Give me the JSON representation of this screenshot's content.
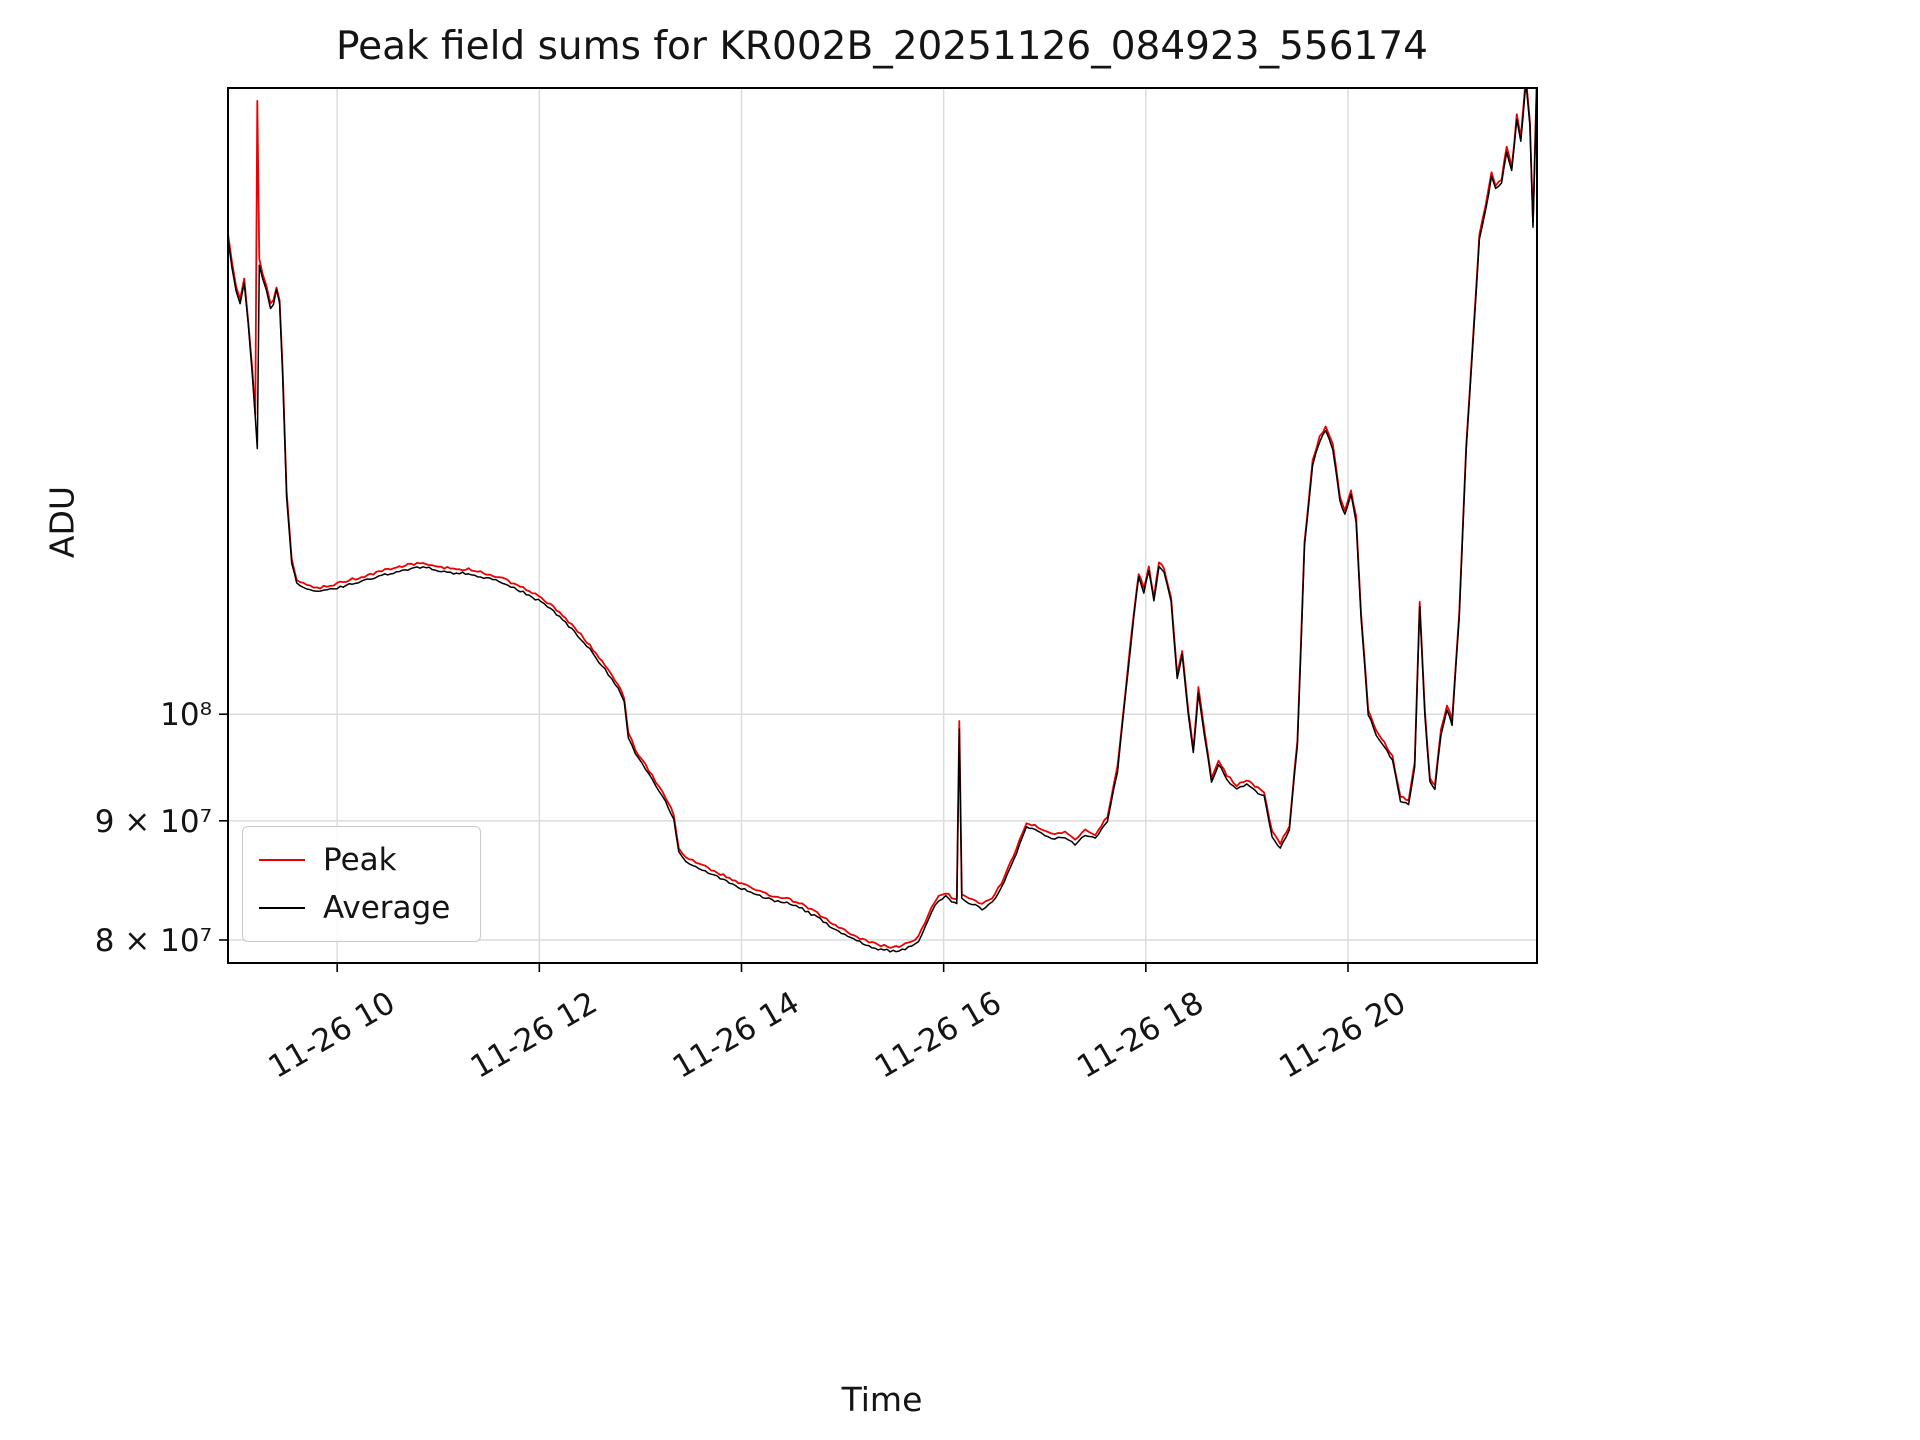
{
  "chart_data": {
    "type": "line",
    "title": "Peak field sums for KR002B_20251126_084923_556174",
    "xlabel": "Time",
    "ylabel": "ADU",
    "y_scale": "log",
    "grid": true,
    "legend_position": "lower left",
    "background": "#ffffff",
    "grid_color": "#dcdcdc",
    "ylim": [
      78200000.0,
      185700000.0
    ],
    "xlim_hours": [
      8.92,
      21.87
    ],
    "x_ticks": [
      {
        "hour": 10,
        "label": "11-26 10"
      },
      {
        "hour": 12,
        "label": "11-26 12"
      },
      {
        "hour": 14,
        "label": "11-26 14"
      },
      {
        "hour": 16,
        "label": "11-26 16"
      },
      {
        "hour": 18,
        "label": "11-26 18"
      },
      {
        "hour": 20,
        "label": "11-26 20"
      }
    ],
    "y_ticks": [
      {
        "value": 80000000.0,
        "label": "8 × 10⁷"
      },
      {
        "value": 90000000.0,
        "label": "9 × 10⁷"
      },
      {
        "value": 100000000.0,
        "label": "10⁸"
      }
    ],
    "series": [
      {
        "name": "Peak",
        "color": "#ee0000",
        "derived_from": "Average",
        "scale": 1.003,
        "noise_ratio": 0.0025,
        "noise_bias": "positive",
        "overrides": [
          [
            9.21,
            183000000.0
          ],
          [
            16.155,
            99200000.0
          ]
        ]
      },
      {
        "name": "Average",
        "color": "#000000",
        "noise_ratio": 0.0012,
        "noise_bias": "symmetric",
        "points": [
          [
            8.92,
            160000000.0
          ],
          [
            8.96,
            155500000.0
          ],
          [
            9.0,
            152000000.0
          ],
          [
            9.04,
            150000000.0
          ],
          [
            9.08,
            153000000.0
          ],
          [
            9.12,
            147000000.0
          ],
          [
            9.16,
            140000000.0
          ],
          [
            9.19,
            134000000.0
          ],
          [
            9.21,
            130000000.0
          ],
          [
            9.23,
            156000000.0
          ],
          [
            9.26,
            154000000.0
          ],
          [
            9.3,
            152000000.0
          ],
          [
            9.34,
            149500000.0
          ],
          [
            9.37,
            150000000.0
          ],
          [
            9.4,
            152000000.0
          ],
          [
            9.43,
            150000000.0
          ],
          [
            9.46,
            140000000.0
          ],
          [
            9.5,
            124000000.0
          ],
          [
            9.55,
            116000000.0
          ],
          [
            9.6,
            113800000.0
          ],
          [
            9.7,
            113200000.0
          ],
          [
            9.8,
            112800000.0
          ],
          [
            9.9,
            113000000.0
          ],
          [
            10.0,
            113300000.0
          ],
          [
            10.15,
            113800000.0
          ],
          [
            10.3,
            114200000.0
          ],
          [
            10.5,
            114900000.0
          ],
          [
            10.7,
            115400000.0
          ],
          [
            10.85,
            115700000.0
          ],
          [
            11.0,
            115200000.0
          ],
          [
            11.15,
            115000000.0
          ],
          [
            11.3,
            114900000.0
          ],
          [
            11.45,
            114500000.0
          ],
          [
            11.6,
            114000000.0
          ],
          [
            11.75,
            113300000.0
          ],
          [
            11.9,
            112500000.0
          ],
          [
            12.05,
            111500000.0
          ],
          [
            12.2,
            110100000.0
          ],
          [
            12.35,
            108500000.0
          ],
          [
            12.5,
            106600000.0
          ],
          [
            12.65,
            104500000.0
          ],
          [
            12.78,
            102500000.0
          ],
          [
            12.84,
            101200000.0
          ],
          [
            12.88,
            97800000.0
          ],
          [
            12.95,
            96200000.0
          ],
          [
            13.05,
            94700000.0
          ],
          [
            13.15,
            93200000.0
          ],
          [
            13.25,
            91700000.0
          ],
          [
            13.33,
            90200000.0
          ],
          [
            13.38,
            87200000.0
          ],
          [
            13.45,
            86500000.0
          ],
          [
            13.55,
            86000000.0
          ],
          [
            13.7,
            85400000.0
          ],
          [
            13.85,
            84800000.0
          ],
          [
            14.0,
            84200000.0
          ],
          [
            14.15,
            83700000.0
          ],
          [
            14.3,
            83200000.0
          ],
          [
            14.45,
            83000000.0
          ],
          [
            14.6,
            82500000.0
          ],
          [
            14.75,
            81800000.0
          ],
          [
            14.9,
            81000000.0
          ],
          [
            15.05,
            80300000.0
          ],
          [
            15.2,
            79700000.0
          ],
          [
            15.35,
            79300000.0
          ],
          [
            15.5,
            79100000.0
          ],
          [
            15.62,
            79300000.0
          ],
          [
            15.75,
            79900000.0
          ],
          [
            15.88,
            82200000.0
          ],
          [
            15.95,
            83200000.0
          ],
          [
            16.02,
            83500000.0
          ],
          [
            16.08,
            83100000.0
          ],
          [
            16.13,
            83000000.0
          ],
          [
            16.155,
            98600000.0
          ],
          [
            16.18,
            83300000.0
          ],
          [
            16.28,
            82900000.0
          ],
          [
            16.38,
            82500000.0
          ],
          [
            16.48,
            83000000.0
          ],
          [
            16.6,
            84700000.0
          ],
          [
            16.72,
            87200000.0
          ],
          [
            16.82,
            89500000.0
          ],
          [
            16.9,
            89200000.0
          ],
          [
            17.0,
            88700000.0
          ],
          [
            17.1,
            88400000.0
          ],
          [
            17.2,
            88600000.0
          ],
          [
            17.3,
            87900000.0
          ],
          [
            17.4,
            88800000.0
          ],
          [
            17.5,
            88400000.0
          ],
          [
            17.62,
            90000000.0
          ],
          [
            17.72,
            94500000.0
          ],
          [
            17.8,
            102000000.0
          ],
          [
            17.88,
            110000000.0
          ],
          [
            17.93,
            114500000.0
          ],
          [
            17.98,
            112800000.0
          ],
          [
            18.03,
            115200000.0
          ],
          [
            18.08,
            111800000.0
          ],
          [
            18.13,
            115700000.0
          ],
          [
            18.18,
            115000000.0
          ],
          [
            18.25,
            111800000.0
          ],
          [
            18.31,
            103700000.0
          ],
          [
            18.36,
            106000000.0
          ],
          [
            18.42,
            100000000.0
          ],
          [
            18.47,
            96200000.0
          ],
          [
            18.52,
            102200000.0
          ],
          [
            18.58,
            98000000.0
          ],
          [
            18.65,
            93500000.0
          ],
          [
            18.72,
            95200000.0
          ],
          [
            18.8,
            93800000.0
          ],
          [
            18.9,
            92800000.0
          ],
          [
            19.0,
            93300000.0
          ],
          [
            19.08,
            92700000.0
          ],
          [
            19.17,
            92200000.0
          ],
          [
            19.25,
            88600000.0
          ],
          [
            19.33,
            87600000.0
          ],
          [
            19.42,
            89200000.0
          ],
          [
            19.5,
            97000000.0
          ],
          [
            19.57,
            118000000.0
          ],
          [
            19.65,
            128000000.0
          ],
          [
            19.72,
            131000000.0
          ],
          [
            19.78,
            132300000.0
          ],
          [
            19.85,
            130000000.0
          ],
          [
            19.92,
            123500000.0
          ],
          [
            19.97,
            121800000.0
          ],
          [
            20.03,
            124200000.0
          ],
          [
            20.08,
            121000000.0
          ],
          [
            20.13,
            110000000.0
          ],
          [
            20.2,
            100000000.0
          ],
          [
            20.28,
            98000000.0
          ],
          [
            20.36,
            96800000.0
          ],
          [
            20.44,
            95500000.0
          ],
          [
            20.52,
            91800000.0
          ],
          [
            20.6,
            91500000.0
          ],
          [
            20.66,
            95000000.0
          ],
          [
            20.71,
            111200000.0
          ],
          [
            20.76,
            100000000.0
          ],
          [
            20.81,
            93500000.0
          ],
          [
            20.86,
            92800000.0
          ],
          [
            20.92,
            98000000.0
          ],
          [
            20.98,
            100500000.0
          ],
          [
            21.03,
            99000000.0
          ],
          [
            21.1,
            110000000.0
          ],
          [
            21.17,
            130000000.0
          ],
          [
            21.24,
            145000000.0
          ],
          [
            21.3,
            160000000.0
          ],
          [
            21.36,
            164500000.0
          ],
          [
            21.42,
            170000000.0
          ],
          [
            21.46,
            168000000.0
          ],
          [
            21.52,
            169000000.0
          ],
          [
            21.57,
            174500000.0
          ],
          [
            21.62,
            171000000.0
          ],
          [
            21.67,
            180000000.0
          ],
          [
            21.71,
            176000000.0
          ],
          [
            21.76,
            187000000.0
          ],
          [
            21.8,
            179000000.0
          ],
          [
            21.83,
            162000000.0
          ],
          [
            21.87,
            188000000.0
          ]
        ]
      }
    ]
  }
}
